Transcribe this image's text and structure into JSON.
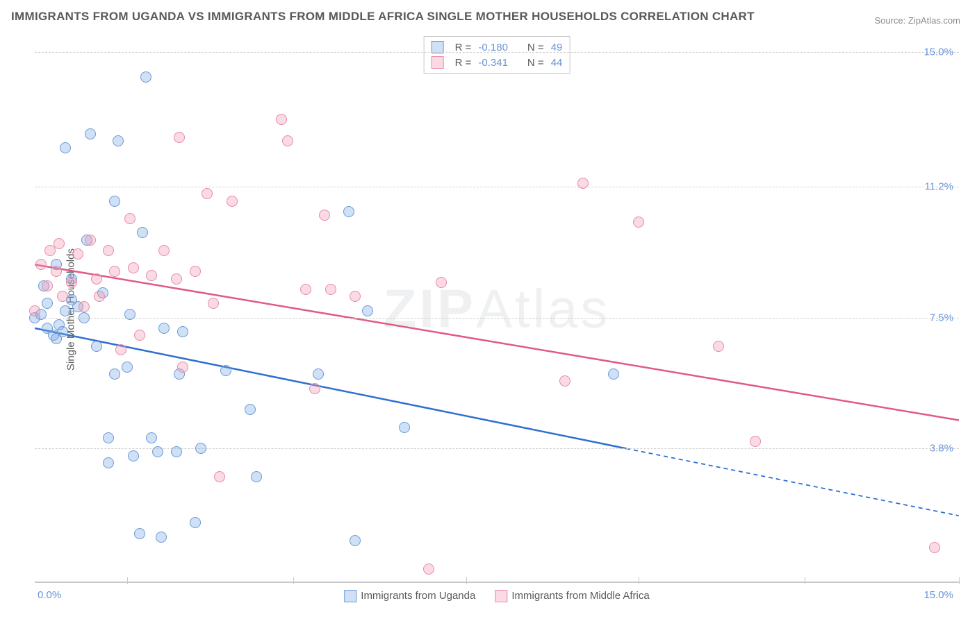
{
  "title": "IMMIGRANTS FROM UGANDA VS IMMIGRANTS FROM MIDDLE AFRICA SINGLE MOTHER HOUSEHOLDS CORRELATION CHART",
  "source_prefix": "Source: ",
  "source_name": "ZipAtlas.com",
  "ylabel": "Single Mother Households",
  "watermark_a": "ZIP",
  "watermark_b": "Atlas",
  "chart": {
    "type": "scatter",
    "xlim": [
      0,
      15
    ],
    "ylim": [
      0,
      15.5
    ],
    "x_left_label": "0.0%",
    "x_right_label": "15.0%",
    "xticks": [
      1.5,
      4.2,
      7.0,
      9.8,
      12.5,
      15.0
    ],
    "yticks": [
      {
        "v": 3.8,
        "label": "3.8%"
      },
      {
        "v": 7.5,
        "label": "7.5%"
      },
      {
        "v": 11.2,
        "label": "11.2%"
      },
      {
        "v": 15.0,
        "label": "15.0%"
      }
    ],
    "grid_color": "#d0d0d0",
    "background_color": "#ffffff",
    "marker_radius": 8,
    "marker_border_width": 1.5,
    "series": [
      {
        "name": "Immigrants from Uganda",
        "color_fill": "rgba(120,165,225,0.35)",
        "color_border": "#6a9ad8",
        "line_color": "#2f6fd0",
        "R": "-0.180",
        "N": "49",
        "trend": {
          "x1": 0,
          "y1": 7.2,
          "x2": 9.6,
          "y2": 3.8,
          "x2_ext": 15.0,
          "y2_ext": 1.9
        },
        "points": [
          [
            0.0,
            7.5
          ],
          [
            0.1,
            7.6
          ],
          [
            0.2,
            7.2
          ],
          [
            0.2,
            7.9
          ],
          [
            0.15,
            8.4
          ],
          [
            0.3,
            7.0
          ],
          [
            0.35,
            6.9
          ],
          [
            0.4,
            7.3
          ],
          [
            0.35,
            9.0
          ],
          [
            0.5,
            7.7
          ],
          [
            0.45,
            7.1
          ],
          [
            0.6,
            8.0
          ],
          [
            0.5,
            12.3
          ],
          [
            0.6,
            8.6
          ],
          [
            0.8,
            7.5
          ],
          [
            0.85,
            9.7
          ],
          [
            0.9,
            12.7
          ],
          [
            1.0,
            6.7
          ],
          [
            1.1,
            8.2
          ],
          [
            1.2,
            3.4
          ],
          [
            1.2,
            4.1
          ],
          [
            1.3,
            5.9
          ],
          [
            1.3,
            10.8
          ],
          [
            1.35,
            12.5
          ],
          [
            1.5,
            6.1
          ],
          [
            1.55,
            7.6
          ],
          [
            1.6,
            3.6
          ],
          [
            1.7,
            1.4
          ],
          [
            1.75,
            9.9
          ],
          [
            1.8,
            14.3
          ],
          [
            1.9,
            4.1
          ],
          [
            2.0,
            3.7
          ],
          [
            2.05,
            1.3
          ],
          [
            2.1,
            7.2
          ],
          [
            2.3,
            3.7
          ],
          [
            2.35,
            5.9
          ],
          [
            2.4,
            7.1
          ],
          [
            2.6,
            1.7
          ],
          [
            2.7,
            3.8
          ],
          [
            3.1,
            6.0
          ],
          [
            3.5,
            4.9
          ],
          [
            3.6,
            3.0
          ],
          [
            4.6,
            5.9
          ],
          [
            5.1,
            10.5
          ],
          [
            5.2,
            1.2
          ],
          [
            5.4,
            7.7
          ],
          [
            6.0,
            4.4
          ],
          [
            9.4,
            5.9
          ],
          [
            0.7,
            7.8
          ]
        ]
      },
      {
        "name": "Immigrants from Middle Africa",
        "color_fill": "rgba(240,150,175,0.35)",
        "color_border": "#e88aa7",
        "line_color": "#e05a85",
        "R": "-0.341",
        "N": "44",
        "trend": {
          "x1": 0,
          "y1": 9.0,
          "x2": 15.0,
          "y2": 4.6,
          "x2_ext": 15.0,
          "y2_ext": 4.6
        },
        "points": [
          [
            0.0,
            7.7
          ],
          [
            0.1,
            9.0
          ],
          [
            0.2,
            8.4
          ],
          [
            0.25,
            9.4
          ],
          [
            0.35,
            8.8
          ],
          [
            0.4,
            9.6
          ],
          [
            0.45,
            8.1
          ],
          [
            0.6,
            8.5
          ],
          [
            0.7,
            9.3
          ],
          [
            0.8,
            7.8
          ],
          [
            0.9,
            9.7
          ],
          [
            1.0,
            8.6
          ],
          [
            1.05,
            8.1
          ],
          [
            1.2,
            9.4
          ],
          [
            1.3,
            8.8
          ],
          [
            1.4,
            6.6
          ],
          [
            1.55,
            10.3
          ],
          [
            1.6,
            8.9
          ],
          [
            1.7,
            7.0
          ],
          [
            1.9,
            8.7
          ],
          [
            2.1,
            9.4
          ],
          [
            2.3,
            8.6
          ],
          [
            2.35,
            12.6
          ],
          [
            2.4,
            6.1
          ],
          [
            2.6,
            8.8
          ],
          [
            2.8,
            11.0
          ],
          [
            2.9,
            7.9
          ],
          [
            3.0,
            3.0
          ],
          [
            3.2,
            10.8
          ],
          [
            4.0,
            13.1
          ],
          [
            4.1,
            12.5
          ],
          [
            4.4,
            8.3
          ],
          [
            4.55,
            5.5
          ],
          [
            4.7,
            10.4
          ],
          [
            4.8,
            8.3
          ],
          [
            5.2,
            8.1
          ],
          [
            6.4,
            0.4
          ],
          [
            6.6,
            8.5
          ],
          [
            8.6,
            5.7
          ],
          [
            8.9,
            11.3
          ],
          [
            9.8,
            10.2
          ],
          [
            11.1,
            6.7
          ],
          [
            11.7,
            4.0
          ],
          [
            14.6,
            1.0
          ]
        ]
      }
    ],
    "bottom_legend": [
      {
        "label": "Immigrants from Uganda",
        "fill": "rgba(120,165,225,0.35)",
        "border": "#6a9ad8"
      },
      {
        "label": "Immigrants from Middle Africa",
        "fill": "rgba(240,150,175,0.35)",
        "border": "#e88aa7"
      }
    ]
  }
}
